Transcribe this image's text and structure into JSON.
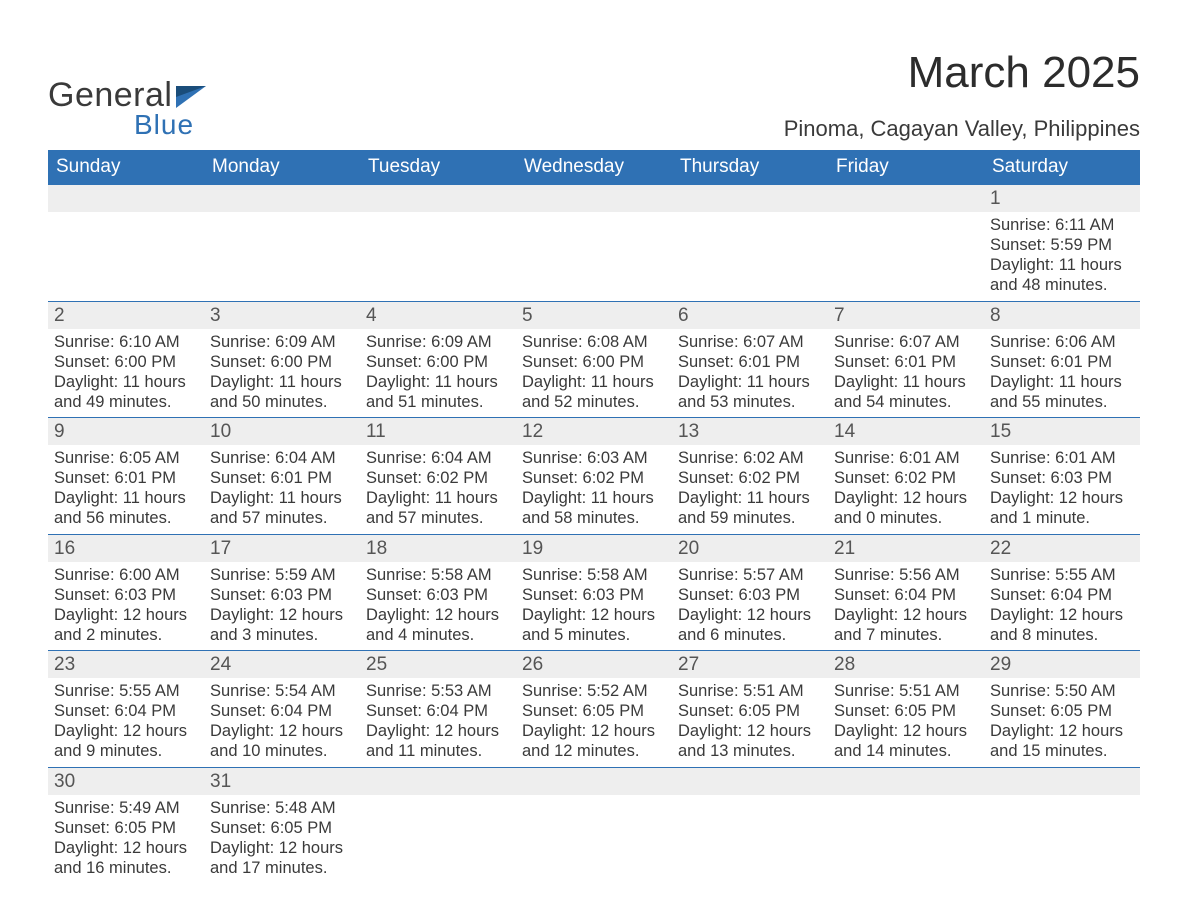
{
  "logo": {
    "text1": "General",
    "text2": "Blue"
  },
  "title": "March 2025",
  "location": "Pinoma, Cagayan Valley, Philippines",
  "colors": {
    "header_bg": "#2f71b4",
    "header_text": "#ffffff",
    "stripe_bg": "#eeeeee",
    "rule": "#2f71b4",
    "body_text": "#3a3a3a",
    "page_bg": "#ffffff",
    "logo_blue": "#2f71b4"
  },
  "weekdays": [
    "Sunday",
    "Monday",
    "Tuesday",
    "Wednesday",
    "Thursday",
    "Friday",
    "Saturday"
  ],
  "weeks": [
    [
      null,
      null,
      null,
      null,
      null,
      null,
      {
        "n": "1",
        "sunrise": "Sunrise: 6:11 AM",
        "sunset": "Sunset: 5:59 PM",
        "day1": "Daylight: 11 hours",
        "day2": "and 48 minutes."
      }
    ],
    [
      {
        "n": "2",
        "sunrise": "Sunrise: 6:10 AM",
        "sunset": "Sunset: 6:00 PM",
        "day1": "Daylight: 11 hours",
        "day2": "and 49 minutes."
      },
      {
        "n": "3",
        "sunrise": "Sunrise: 6:09 AM",
        "sunset": "Sunset: 6:00 PM",
        "day1": "Daylight: 11 hours",
        "day2": "and 50 minutes."
      },
      {
        "n": "4",
        "sunrise": "Sunrise: 6:09 AM",
        "sunset": "Sunset: 6:00 PM",
        "day1": "Daylight: 11 hours",
        "day2": "and 51 minutes."
      },
      {
        "n": "5",
        "sunrise": "Sunrise: 6:08 AM",
        "sunset": "Sunset: 6:00 PM",
        "day1": "Daylight: 11 hours",
        "day2": "and 52 minutes."
      },
      {
        "n": "6",
        "sunrise": "Sunrise: 6:07 AM",
        "sunset": "Sunset: 6:01 PM",
        "day1": "Daylight: 11 hours",
        "day2": "and 53 minutes."
      },
      {
        "n": "7",
        "sunrise": "Sunrise: 6:07 AM",
        "sunset": "Sunset: 6:01 PM",
        "day1": "Daylight: 11 hours",
        "day2": "and 54 minutes."
      },
      {
        "n": "8",
        "sunrise": "Sunrise: 6:06 AM",
        "sunset": "Sunset: 6:01 PM",
        "day1": "Daylight: 11 hours",
        "day2": "and 55 minutes."
      }
    ],
    [
      {
        "n": "9",
        "sunrise": "Sunrise: 6:05 AM",
        "sunset": "Sunset: 6:01 PM",
        "day1": "Daylight: 11 hours",
        "day2": "and 56 minutes."
      },
      {
        "n": "10",
        "sunrise": "Sunrise: 6:04 AM",
        "sunset": "Sunset: 6:01 PM",
        "day1": "Daylight: 11 hours",
        "day2": "and 57 minutes."
      },
      {
        "n": "11",
        "sunrise": "Sunrise: 6:04 AM",
        "sunset": "Sunset: 6:02 PM",
        "day1": "Daylight: 11 hours",
        "day2": "and 57 minutes."
      },
      {
        "n": "12",
        "sunrise": "Sunrise: 6:03 AM",
        "sunset": "Sunset: 6:02 PM",
        "day1": "Daylight: 11 hours",
        "day2": "and 58 minutes."
      },
      {
        "n": "13",
        "sunrise": "Sunrise: 6:02 AM",
        "sunset": "Sunset: 6:02 PM",
        "day1": "Daylight: 11 hours",
        "day2": "and 59 minutes."
      },
      {
        "n": "14",
        "sunrise": "Sunrise: 6:01 AM",
        "sunset": "Sunset: 6:02 PM",
        "day1": "Daylight: 12 hours",
        "day2": "and 0 minutes."
      },
      {
        "n": "15",
        "sunrise": "Sunrise: 6:01 AM",
        "sunset": "Sunset: 6:03 PM",
        "day1": "Daylight: 12 hours",
        "day2": "and 1 minute."
      }
    ],
    [
      {
        "n": "16",
        "sunrise": "Sunrise: 6:00 AM",
        "sunset": "Sunset: 6:03 PM",
        "day1": "Daylight: 12 hours",
        "day2": "and 2 minutes."
      },
      {
        "n": "17",
        "sunrise": "Sunrise: 5:59 AM",
        "sunset": "Sunset: 6:03 PM",
        "day1": "Daylight: 12 hours",
        "day2": "and 3 minutes."
      },
      {
        "n": "18",
        "sunrise": "Sunrise: 5:58 AM",
        "sunset": "Sunset: 6:03 PM",
        "day1": "Daylight: 12 hours",
        "day2": "and 4 minutes."
      },
      {
        "n": "19",
        "sunrise": "Sunrise: 5:58 AM",
        "sunset": "Sunset: 6:03 PM",
        "day1": "Daylight: 12 hours",
        "day2": "and 5 minutes."
      },
      {
        "n": "20",
        "sunrise": "Sunrise: 5:57 AM",
        "sunset": "Sunset: 6:03 PM",
        "day1": "Daylight: 12 hours",
        "day2": "and 6 minutes."
      },
      {
        "n": "21",
        "sunrise": "Sunrise: 5:56 AM",
        "sunset": "Sunset: 6:04 PM",
        "day1": "Daylight: 12 hours",
        "day2": "and 7 minutes."
      },
      {
        "n": "22",
        "sunrise": "Sunrise: 5:55 AM",
        "sunset": "Sunset: 6:04 PM",
        "day1": "Daylight: 12 hours",
        "day2": "and 8 minutes."
      }
    ],
    [
      {
        "n": "23",
        "sunrise": "Sunrise: 5:55 AM",
        "sunset": "Sunset: 6:04 PM",
        "day1": "Daylight: 12 hours",
        "day2": "and 9 minutes."
      },
      {
        "n": "24",
        "sunrise": "Sunrise: 5:54 AM",
        "sunset": "Sunset: 6:04 PM",
        "day1": "Daylight: 12 hours",
        "day2": "and 10 minutes."
      },
      {
        "n": "25",
        "sunrise": "Sunrise: 5:53 AM",
        "sunset": "Sunset: 6:04 PM",
        "day1": "Daylight: 12 hours",
        "day2": "and 11 minutes."
      },
      {
        "n": "26",
        "sunrise": "Sunrise: 5:52 AM",
        "sunset": "Sunset: 6:05 PM",
        "day1": "Daylight: 12 hours",
        "day2": "and 12 minutes."
      },
      {
        "n": "27",
        "sunrise": "Sunrise: 5:51 AM",
        "sunset": "Sunset: 6:05 PM",
        "day1": "Daylight: 12 hours",
        "day2": "and 13 minutes."
      },
      {
        "n": "28",
        "sunrise": "Sunrise: 5:51 AM",
        "sunset": "Sunset: 6:05 PM",
        "day1": "Daylight: 12 hours",
        "day2": "and 14 minutes."
      },
      {
        "n": "29",
        "sunrise": "Sunrise: 5:50 AM",
        "sunset": "Sunset: 6:05 PM",
        "day1": "Daylight: 12 hours",
        "day2": "and 15 minutes."
      }
    ],
    [
      {
        "n": "30",
        "sunrise": "Sunrise: 5:49 AM",
        "sunset": "Sunset: 6:05 PM",
        "day1": "Daylight: 12 hours",
        "day2": "and 16 minutes."
      },
      {
        "n": "31",
        "sunrise": "Sunrise: 5:48 AM",
        "sunset": "Sunset: 6:05 PM",
        "day1": "Daylight: 12 hours",
        "day2": "and 17 minutes."
      },
      null,
      null,
      null,
      null,
      null
    ]
  ]
}
